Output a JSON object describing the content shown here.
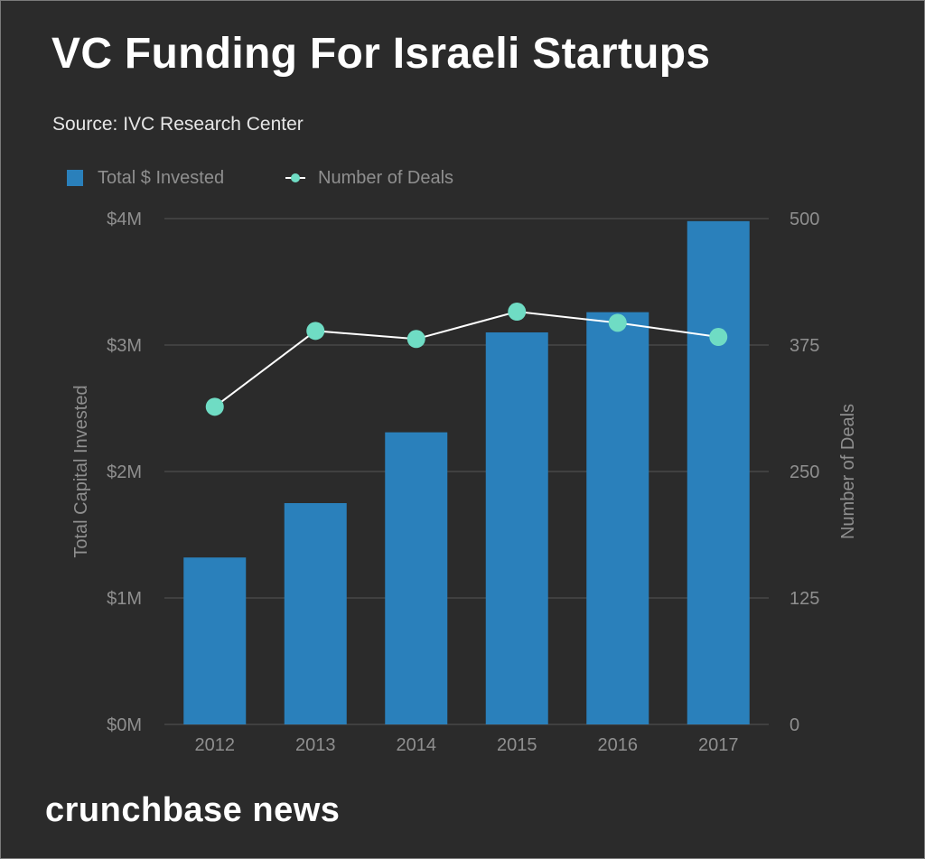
{
  "title": "VC Funding For Israeli Startups",
  "source": "Source: IVC Research Center",
  "brand": "crunchbase news",
  "legend": {
    "bars": "Total $ Invested",
    "line": "Number of Deals"
  },
  "colors": {
    "bar": "#2a80bb",
    "line": "#ffffff",
    "marker": "#6fdcc4",
    "grid": "#555555",
    "axis_text": "#8f8f8f"
  },
  "chart_data": {
    "type": "bar",
    "categories": [
      "2012",
      "2013",
      "2014",
      "2015",
      "2016",
      "2017"
    ],
    "series": [
      {
        "name": "Total $ Invested",
        "type": "bar",
        "axis": "left",
        "values": [
          1.32,
          1.75,
          2.31,
          3.1,
          3.26,
          3.98
        ]
      },
      {
        "name": "Number of Deals",
        "type": "line",
        "axis": "right",
        "values": [
          314,
          389,
          381,
          408,
          397,
          383
        ]
      }
    ],
    "ylabel": "Total Capital Invested",
    "y2label": "Number of Deals",
    "ylim": [
      0,
      4
    ],
    "y2lim": [
      0,
      500
    ],
    "yticks": [
      "$0M",
      "$1M",
      "$2M",
      "$3M",
      "$4M"
    ],
    "y2ticks": [
      "0",
      "125",
      "250",
      "375",
      "500"
    ],
    "grid": true,
    "legend_position": "top-left"
  }
}
